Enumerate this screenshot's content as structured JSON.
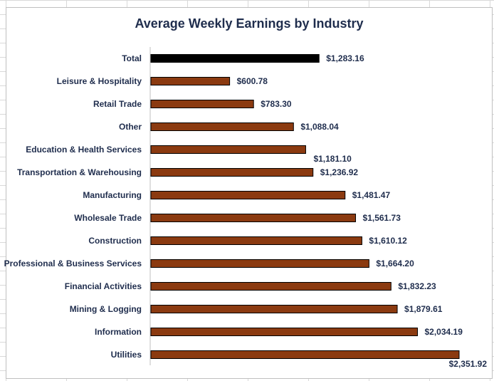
{
  "chart_data": {
    "type": "bar",
    "orientation": "horizontal",
    "title": "Average Weekly Earnings by Industry",
    "xlabel": "",
    "ylabel": "",
    "xlim": [
      0,
      2400
    ],
    "grid": false,
    "legend": "none",
    "categories": [
      "Total",
      "Leisure & Hospitality",
      "Retail Trade",
      "Other",
      "Education & Health Services",
      "Transportation & Warehousing",
      "Manufacturing",
      "Wholesale Trade",
      "Construction",
      "Professional & Business Services",
      "Financial Activities",
      "Mining & Logging",
      "Information",
      "Utilities"
    ],
    "values": [
      1283.16,
      600.78,
      783.3,
      1088.04,
      1181.1,
      1236.92,
      1481.47,
      1561.73,
      1610.12,
      1664.2,
      1832.23,
      1879.61,
      2034.19,
      2351.92
    ],
    "data_labels": [
      "$1,283.16",
      "$600.78",
      "$783.30",
      "$1,088.04",
      "$1,181.10",
      "$1,236.92",
      "$1,481.47",
      "$1,561.73",
      "$1,610.12",
      "$1,664.20",
      "$1,832.23",
      "$1,879.61",
      "$2,034.19",
      "$2,351.92"
    ],
    "colors": {
      "total": "#000000",
      "industry": "#8b3a10",
      "text": "#1f2d4d",
      "axis": "#bfbfbf"
    }
  }
}
